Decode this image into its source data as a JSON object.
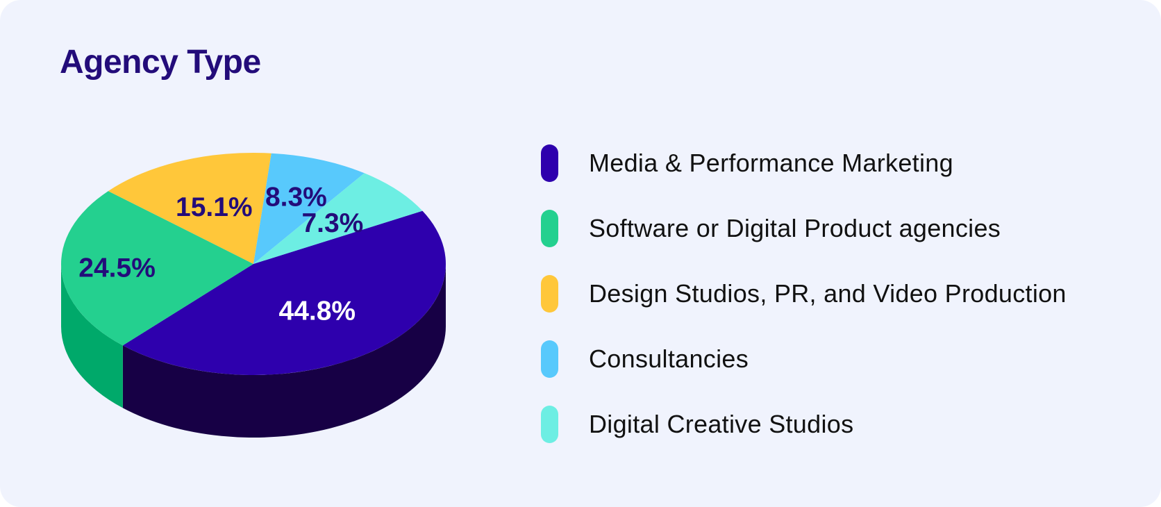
{
  "chart_data": {
    "type": "pie",
    "title": "Agency Type",
    "style": "3d",
    "legend_position": "right",
    "slices": [
      {
        "label": "Media & Performance Marketing",
        "value": 44.8,
        "value_label": "44.8%",
        "color": "#2e00ad",
        "side_color": "#170045",
        "label_color": "#ffffff"
      },
      {
        "label": "Software or Digital Product agencies",
        "value": 24.5,
        "value_label": "24.5%",
        "color": "#24d08f",
        "side_color": "#00a96a",
        "label_color": "#230c7a"
      },
      {
        "label": "Design Studios, PR, and Video Production",
        "value": 15.1,
        "value_label": "15.1%",
        "color": "#ffc73a",
        "side_color": "#e0a820",
        "label_color": "#230c7a"
      },
      {
        "label": "Consultancies",
        "value": 8.3,
        "value_label": "8.3%",
        "color": "#58c9fc",
        "side_color": "#2aa7dc",
        "label_color": "#230c7a"
      },
      {
        "label": "Digital Creative Studios",
        "value": 7.3,
        "value_label": "7.3%",
        "color": "#6deee3",
        "side_color": "#46dbd2",
        "label_color": "#230c7a"
      }
    ]
  }
}
